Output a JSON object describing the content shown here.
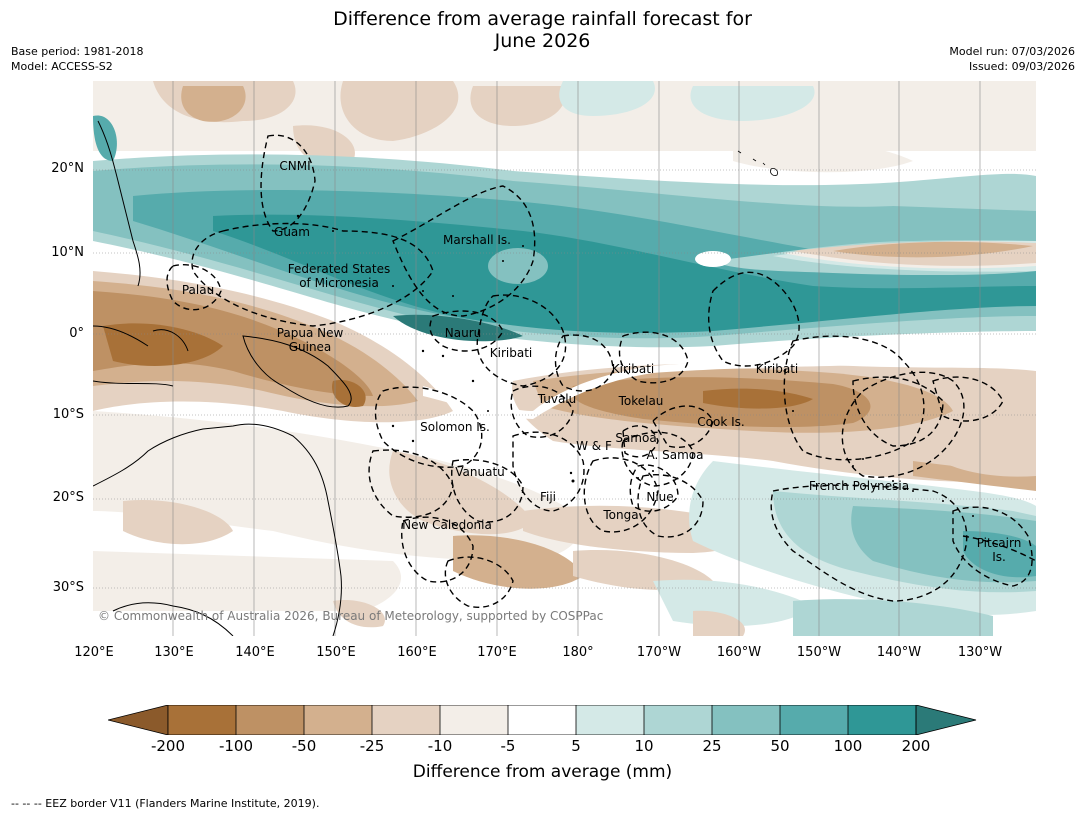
{
  "title_line1": "Difference from average rainfall forecast for",
  "title_line2": "June 2026",
  "base_period": "Base period: 1981-2018",
  "model": "Model: ACCESS-S2",
  "model_run": "Model run: 07/03/2026",
  "issued": "Issued: 09/03/2026",
  "map": {
    "lat_labels": [
      "20°N",
      "10°N",
      "0°",
      "10°S",
      "20°S",
      "30°S"
    ],
    "lon_labels": [
      "120°E",
      "130°E",
      "140°E",
      "150°E",
      "160°E",
      "170°E",
      "180°",
      "170°W",
      "160°W",
      "150°W",
      "140°W",
      "130°W"
    ],
    "places": {
      "cnmi": "CNMI",
      "guam": "Guam",
      "marshall": "Marshall Is.",
      "fsm_line1": "Federated States",
      "fsm_line2": "of Micronesia",
      "palau": "Palau",
      "png_line1": "Papua New",
      "png_line2": "Guinea",
      "nauru": "Nauru",
      "kiribati_west": "Kiribati",
      "kiribati_central": "Kiribati",
      "kiribati_east": "Kiribati",
      "tuvalu": "Tuvalu",
      "tokelau": "Tokelau",
      "cook": "Cook Is.",
      "solomon": "Solomon Is.",
      "wf": "W & F",
      "samoa": "Samoa",
      "asamoa": "A. Samoa",
      "vanuatu": "Vanuatu",
      "fiji": "Fiji",
      "niue": "Niue",
      "frpoly": "French Polynesia",
      "tonga": "Tonga",
      "newcal": "New Caledonia",
      "pitcairn_line1": "Pitcairn",
      "pitcairn_line2": "Is."
    },
    "copyright": "© Commonwealth of Australia 2026, Bureau of Meteorology, supported by COSPPac"
  },
  "colorbar": {
    "label": "Difference from average (mm)",
    "ticks": [
      "-200",
      "-100",
      "-50",
      "-25",
      "-10",
      "-5",
      "5",
      "10",
      "25",
      "50",
      "100",
      "200"
    ],
    "colors": [
      "#8b5a2b",
      "#a87138",
      "#be9164",
      "#d3b08e",
      "#e5d2c2",
      "#f3eee8",
      "#ffffff",
      "#d4e9e7",
      "#aed6d4",
      "#84c1c0",
      "#56abac",
      "#2f9796",
      "#2b7a78"
    ]
  },
  "footnote": "--  --  -- EEZ border V11 (Flanders Marine Institute, 2019)."
}
